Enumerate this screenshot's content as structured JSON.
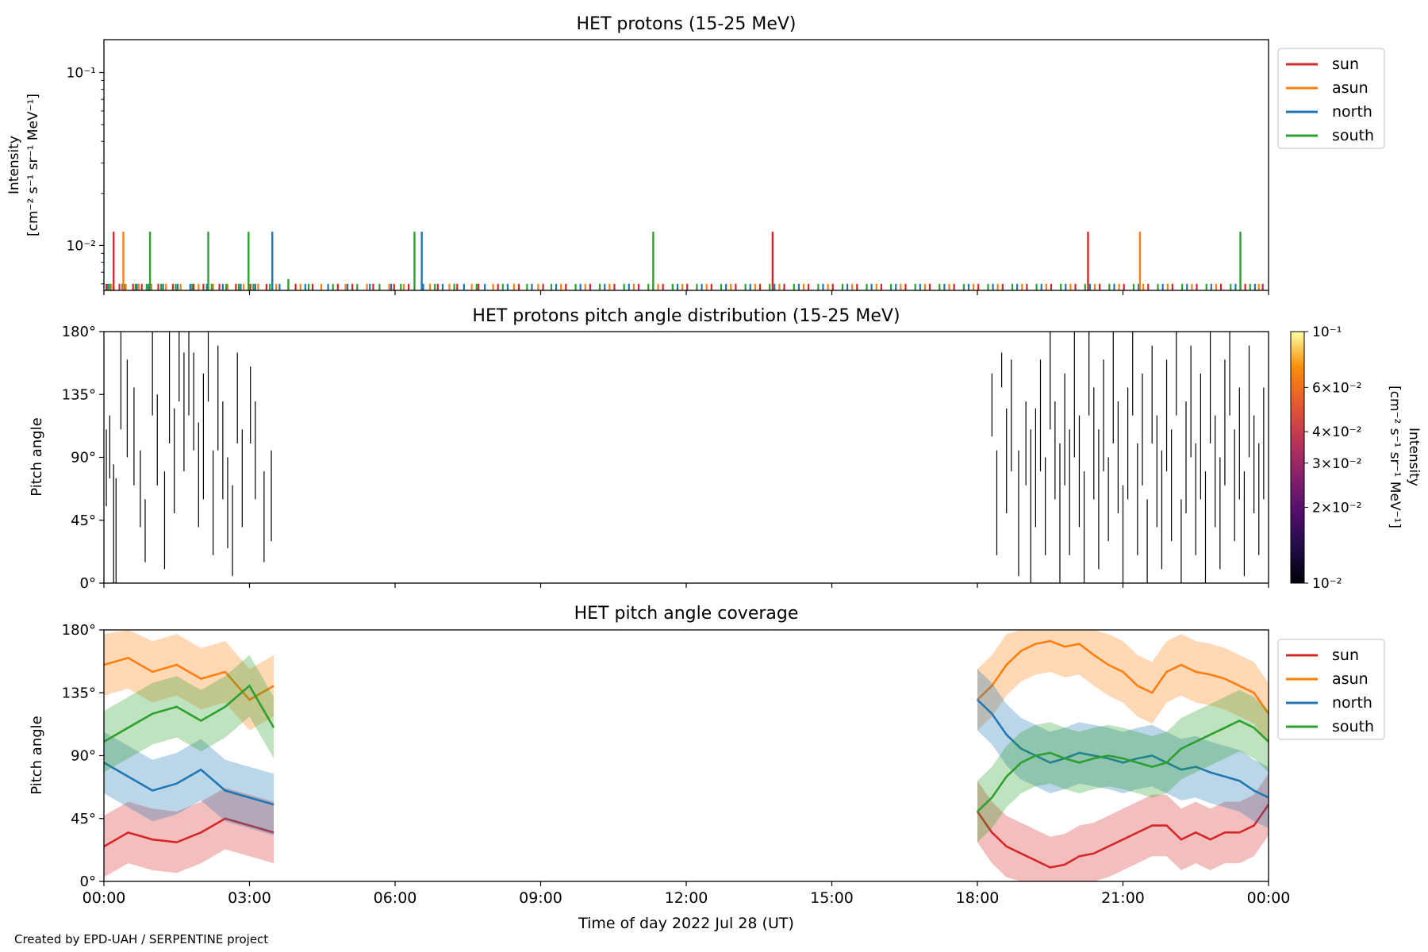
{
  "footer": "Created by EPD-UAH / SERPENTINE project",
  "colors": {
    "sun": "#d62728",
    "asun": "#ff7f0e",
    "north": "#1f77b4",
    "south": "#2ca02c"
  },
  "chart_data": [
    {
      "type": "line",
      "title": "HET protons (15-25 MeV)",
      "ylabel": [
        "Intensity",
        "[cm⁻² s⁻¹ sr⁻¹ MeV⁻¹]"
      ],
      "yscale": "log",
      "ylim": [
        0.0055,
        0.155
      ],
      "yticks": [
        {
          "value": 0.1,
          "label": "10⁻¹"
        },
        {
          "value": 0.01,
          "label": "10⁻²"
        }
      ],
      "xlim": [
        0,
        24
      ],
      "legend": {
        "placement": "outside-right-top",
        "entries": [
          "sun",
          "asun",
          "north",
          "south"
        ]
      },
      "baseline": 0.006,
      "spikes": [
        {
          "series": "sun",
          "x": 0.2,
          "y": 0.012
        },
        {
          "series": "asun",
          "x": 0.4,
          "y": 0.012
        },
        {
          "series": "south",
          "x": 0.95,
          "y": 0.012
        },
        {
          "series": "south",
          "x": 2.15,
          "y": 0.012
        },
        {
          "series": "south",
          "x": 2.98,
          "y": 0.012
        },
        {
          "series": "north",
          "x": 3.47,
          "y": 0.012
        },
        {
          "series": "south",
          "x": 3.8,
          "y": 0.0064
        },
        {
          "series": "south",
          "x": 6.4,
          "y": 0.012
        },
        {
          "series": "north",
          "x": 6.55,
          "y": 0.012
        },
        {
          "series": "south",
          "x": 11.32,
          "y": 0.012
        },
        {
          "series": "sun",
          "x": 13.78,
          "y": 0.012
        },
        {
          "series": "sun",
          "x": 20.28,
          "y": 0.012
        },
        {
          "series": "asun",
          "x": 21.35,
          "y": 0.012
        },
        {
          "series": "south",
          "x": 23.42,
          "y": 0.012
        }
      ],
      "series": [
        {
          "name": "sun",
          "x": [
            0.05,
            0.32,
            0.6,
            0.78,
            1.12,
            1.42,
            1.85,
            2.05,
            2.38,
            2.72,
            3.02,
            3.35,
            3.95,
            4.3,
            4.82,
            5.12,
            5.55,
            5.98,
            6.28,
            6.88,
            7.28,
            7.72,
            8.12,
            8.55,
            9.05,
            9.52,
            10.02,
            10.52,
            11.02,
            11.52,
            12.02,
            12.52,
            13.02,
            13.52,
            14.02,
            14.52,
            15.02,
            15.52,
            16.02,
            16.52,
            17.02,
            17.52,
            18.02,
            18.52,
            19.02,
            19.52,
            20.02,
            20.52,
            21.02,
            21.52,
            22.02,
            22.52,
            23.02,
            23.52,
            23.88
          ]
        },
        {
          "name": "asun",
          "x": [
            0.15,
            0.45,
            0.72,
            0.98,
            1.28,
            1.58,
            1.95,
            2.25,
            2.55,
            2.88,
            3.18,
            3.55,
            4.05,
            4.48,
            4.98,
            5.42,
            5.88,
            6.18,
            6.72,
            7.12,
            7.58,
            8.02,
            8.45,
            8.95,
            9.42,
            9.92,
            10.42,
            10.92,
            11.42,
            11.92,
            12.42,
            12.92,
            13.42,
            13.92,
            14.42,
            14.92,
            15.42,
            15.92,
            16.42,
            16.92,
            17.42,
            17.92,
            18.42,
            18.92,
            19.42,
            19.92,
            20.42,
            20.92,
            21.42,
            21.92,
            22.42,
            22.92,
            23.42,
            23.8
          ]
        },
        {
          "name": "north",
          "x": [
            0.08,
            0.38,
            0.68,
            0.92,
            1.22,
            1.52,
            1.78,
            2.12,
            2.45,
            2.82,
            3.12,
            3.62,
            4.15,
            4.62,
            5.02,
            5.48,
            5.92,
            6.58,
            6.98,
            7.42,
            7.85,
            8.32,
            8.82,
            9.32,
            9.82,
            10.32,
            10.82,
            11.32,
            11.82,
            12.32,
            12.82,
            13.32,
            13.82,
            14.32,
            14.82,
            15.32,
            15.82,
            16.32,
            16.82,
            17.32,
            17.82,
            18.32,
            18.82,
            19.32,
            19.82,
            20.32,
            20.82,
            21.32,
            21.82,
            22.32,
            22.82,
            23.32,
            23.72
          ]
        },
        {
          "name": "south",
          "x": [
            0.12,
            0.42,
            0.65,
            0.88,
            1.18,
            1.48,
            1.82,
            2.22,
            2.52,
            2.78,
            3.08,
            3.42,
            4.22,
            4.72,
            5.22,
            5.68,
            6.12,
            6.82,
            7.22,
            7.68,
            8.22,
            8.72,
            9.22,
            9.72,
            10.22,
            10.72,
            11.22,
            11.72,
            12.22,
            12.72,
            13.22,
            13.72,
            14.22,
            14.72,
            15.22,
            15.72,
            16.22,
            16.72,
            17.22,
            17.72,
            18.22,
            18.72,
            19.22,
            19.72,
            20.22,
            20.72,
            21.22,
            21.72,
            22.22,
            22.72,
            23.22,
            23.62
          ]
        }
      ]
    },
    {
      "type": "heatmap",
      "title": "HET protons pitch angle distribution (15-25 MeV)",
      "ylabel": "Pitch angle",
      "ylim": [
        0,
        180
      ],
      "yticks": [
        0,
        45,
        90,
        135,
        180
      ],
      "ytick_labels": [
        "0°",
        "45°",
        "90°",
        "135°",
        "180°"
      ],
      "xlim": [
        0,
        24
      ],
      "colorbar": {
        "label": [
          "Intensity",
          "[cm⁻² s⁻¹ sr⁻¹ MeV⁻¹]"
        ],
        "scale": "log",
        "range": [
          0.01,
          0.1
        ],
        "colormap": "inferno",
        "ticks": [
          {
            "value": 0.1,
            "label": "10⁻¹"
          },
          {
            "value": 0.06,
            "label": "6×10⁻²"
          },
          {
            "value": 0.04,
            "label": "4×10⁻²"
          },
          {
            "value": 0.03,
            "label": "3×10⁻²"
          },
          {
            "value": 0.02,
            "label": "2×10⁻²"
          },
          {
            "value": 0.01,
            "label": "10⁻²"
          }
        ]
      },
      "segments": [
        [
          0.05,
          55,
          110
        ],
        [
          0.12,
          75,
          120
        ],
        [
          0.2,
          0,
          85
        ],
        [
          0.25,
          0,
          75
        ],
        [
          0.35,
          110,
          180
        ],
        [
          0.48,
          90,
          160
        ],
        [
          0.62,
          70,
          140
        ],
        [
          0.75,
          40,
          95
        ],
        [
          0.85,
          15,
          60
        ],
        [
          1.0,
          120,
          180
        ],
        [
          1.1,
          70,
          135
        ],
        [
          1.25,
          10,
          80
        ],
        [
          1.35,
          100,
          180
        ],
        [
          1.45,
          50,
          125
        ],
        [
          1.55,
          130,
          180
        ],
        [
          1.65,
          80,
          165
        ],
        [
          1.75,
          120,
          180
        ],
        [
          1.85,
          95,
          165
        ],
        [
          1.95,
          40,
          115
        ],
        [
          2.05,
          60,
          150
        ],
        [
          2.15,
          130,
          180
        ],
        [
          2.25,
          20,
          95
        ],
        [
          2.35,
          95,
          170
        ],
        [
          2.45,
          60,
          130
        ],
        [
          2.55,
          25,
          90
        ],
        [
          2.65,
          5,
          70
        ],
        [
          2.75,
          100,
          165
        ],
        [
          2.85,
          40,
          110
        ],
        [
          3.02,
          100,
          155
        ],
        [
          3.12,
          60,
          130
        ],
        [
          3.3,
          15,
          80
        ],
        [
          3.45,
          30,
          95
        ],
        [
          18.3,
          105,
          150
        ],
        [
          18.4,
          20,
          95
        ],
        [
          18.5,
          140,
          165
        ],
        [
          18.6,
          50,
          125
        ],
        [
          18.7,
          80,
          160
        ],
        [
          18.85,
          5,
          95
        ],
        [
          19.0,
          70,
          130
        ],
        [
          19.1,
          0,
          110
        ],
        [
          19.2,
          40,
          125
        ],
        [
          19.3,
          80,
          160
        ],
        [
          19.4,
          20,
          90
        ],
        [
          19.5,
          110,
          180
        ],
        [
          19.6,
          60,
          130
        ],
        [
          19.7,
          0,
          100
        ],
        [
          19.8,
          70,
          150
        ],
        [
          19.9,
          20,
          110
        ],
        [
          20.0,
          90,
          180
        ],
        [
          20.1,
          40,
          120
        ],
        [
          20.2,
          0,
          80
        ],
        [
          20.3,
          120,
          180
        ],
        [
          20.4,
          60,
          140
        ],
        [
          20.5,
          10,
          110
        ],
        [
          20.6,
          80,
          160
        ],
        [
          20.7,
          30,
          90
        ],
        [
          20.8,
          100,
          180
        ],
        [
          20.9,
          50,
          130
        ],
        [
          21.0,
          0,
          70
        ],
        [
          21.1,
          60,
          140
        ],
        [
          21.2,
          120,
          180
        ],
        [
          21.3,
          20,
          100
        ],
        [
          21.4,
          70,
          150
        ],
        [
          21.5,
          0,
          60
        ],
        [
          21.6,
          100,
          170
        ],
        [
          21.7,
          40,
          120
        ],
        [
          21.8,
          10,
          95
        ],
        [
          21.9,
          80,
          160
        ],
        [
          22.0,
          30,
          110
        ],
        [
          22.1,
          120,
          180
        ],
        [
          22.2,
          0,
          60
        ],
        [
          22.3,
          50,
          130
        ],
        [
          22.4,
          90,
          170
        ],
        [
          22.5,
          20,
          100
        ],
        [
          22.6,
          60,
          150
        ],
        [
          22.7,
          0,
          80
        ],
        [
          22.8,
          100,
          180
        ],
        [
          22.9,
          40,
          120
        ],
        [
          23.0,
          10,
          90
        ],
        [
          23.1,
          70,
          160
        ],
        [
          23.2,
          120,
          180
        ],
        [
          23.3,
          30,
          110
        ],
        [
          23.4,
          60,
          140
        ],
        [
          23.5,
          5,
          80
        ],
        [
          23.6,
          90,
          170
        ],
        [
          23.7,
          50,
          120
        ],
        [
          23.8,
          20,
          100
        ],
        [
          23.9,
          60,
          140
        ]
      ]
    },
    {
      "type": "area",
      "title": "HET pitch angle coverage",
      "ylabel": "Pitch angle",
      "xlabel": "Time of day 2022 Jul 28 (UT)",
      "ylim": [
        0,
        180
      ],
      "yticks": [
        0,
        45,
        90,
        135,
        180
      ],
      "ytick_labels": [
        "0°",
        "45°",
        "90°",
        "135°",
        "180°"
      ],
      "xlim": [
        0,
        24
      ],
      "xticks": [
        0,
        3,
        6,
        9,
        12,
        15,
        18,
        21,
        24
      ],
      "xtick_labels": [
        "00:00",
        "03:00",
        "06:00",
        "09:00",
        "12:00",
        "15:00",
        "18:00",
        "21:00",
        "00:00"
      ],
      "legend": {
        "placement": "outside-right-top",
        "entries": [
          "sun",
          "asun",
          "north",
          "south"
        ]
      },
      "band_halfwidth": 22,
      "segments": [
        [
          0,
          3.5
        ],
        [
          18.0,
          24.0
        ]
      ],
      "series": [
        {
          "name": "sun",
          "x": [
            0,
            0.5,
            1,
            1.5,
            2,
            2.5,
            3,
            3.5,
            18.0,
            18.3,
            18.6,
            18.9,
            19.2,
            19.5,
            19.8,
            20.1,
            20.4,
            20.7,
            21.0,
            21.3,
            21.6,
            21.9,
            22.2,
            22.5,
            22.8,
            23.1,
            23.4,
            23.7,
            24.0
          ],
          "y": [
            25,
            35,
            30,
            28,
            35,
            45,
            40,
            35,
            50,
            35,
            25,
            20,
            15,
            10,
            12,
            18,
            20,
            25,
            30,
            35,
            40,
            40,
            30,
            35,
            30,
            35,
            35,
            40,
            55
          ]
        },
        {
          "name": "asun",
          "x": [
            0,
            0.5,
            1,
            1.5,
            2,
            2.5,
            3,
            3.5,
            18.0,
            18.3,
            18.6,
            18.9,
            19.2,
            19.5,
            19.8,
            20.1,
            20.4,
            20.7,
            21.0,
            21.3,
            21.6,
            21.9,
            22.2,
            22.5,
            22.8,
            23.1,
            23.4,
            23.7,
            24.0
          ],
          "y": [
            155,
            160,
            150,
            155,
            145,
            150,
            130,
            140,
            130,
            140,
            155,
            165,
            170,
            172,
            168,
            170,
            162,
            155,
            150,
            140,
            135,
            150,
            155,
            150,
            148,
            145,
            140,
            135,
            120
          ]
        },
        {
          "name": "north",
          "x": [
            0,
            0.5,
            1,
            1.5,
            2,
            2.5,
            3,
            3.5,
            18.0,
            18.3,
            18.6,
            18.9,
            19.2,
            19.5,
            19.8,
            20.1,
            20.4,
            20.7,
            21.0,
            21.3,
            21.6,
            21.9,
            22.2,
            22.5,
            22.8,
            23.1,
            23.4,
            23.7,
            24.0
          ],
          "y": [
            85,
            75,
            65,
            70,
            80,
            65,
            60,
            55,
            130,
            120,
            105,
            95,
            90,
            85,
            88,
            92,
            90,
            88,
            85,
            88,
            90,
            85,
            80,
            82,
            78,
            75,
            72,
            65,
            60
          ]
        },
        {
          "name": "south",
          "x": [
            0,
            0.5,
            1,
            1.5,
            2,
            2.5,
            3,
            3.5,
            18.0,
            18.3,
            18.6,
            18.9,
            19.2,
            19.5,
            19.8,
            20.1,
            20.4,
            20.7,
            21.0,
            21.3,
            21.6,
            21.9,
            22.2,
            22.5,
            22.8,
            23.1,
            23.4,
            23.7,
            24.0
          ],
          "y": [
            100,
            110,
            120,
            125,
            115,
            125,
            140,
            110,
            50,
            60,
            75,
            85,
            90,
            92,
            88,
            85,
            88,
            90,
            88,
            85,
            82,
            85,
            95,
            100,
            105,
            110,
            115,
            110,
            100
          ]
        }
      ]
    }
  ]
}
